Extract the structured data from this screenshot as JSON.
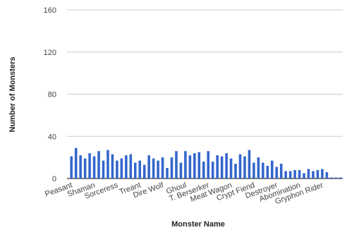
{
  "chart_data": {
    "type": "bar",
    "title": "",
    "xlabel": "Monster Name",
    "ylabel": "Number of Monsters",
    "ylim": [
      0,
      160
    ],
    "yticks": [
      0,
      40,
      80,
      120,
      160
    ],
    "grid": true,
    "legend": "none",
    "bar_color": "#3366cc",
    "visible_category_labels": [
      "Peasant",
      "Shaman",
      "Sorceress",
      "Treant",
      "Dire Wolf",
      "Ghoul",
      "T. Berserker",
      "Meat Wagon",
      "Crypt Fiend",
      "Destroyer",
      "Abomination",
      "Gryphon Rider"
    ],
    "label_every": 5,
    "values": [
      21,
      29,
      22,
      19,
      24,
      21,
      26,
      17,
      27,
      23,
      17,
      19,
      22,
      23,
      15,
      17,
      13,
      22,
      19,
      17,
      20,
      10,
      20,
      26,
      15,
      26,
      22,
      24,
      25,
      16,
      26,
      16,
      22,
      21,
      24,
      19,
      14,
      23,
      21,
      27,
      15,
      20,
      15,
      12,
      17,
      11,
      14,
      7,
      7,
      8,
      8,
      5,
      9,
      7,
      8,
      9,
      6,
      1,
      1,
      1
    ]
  }
}
